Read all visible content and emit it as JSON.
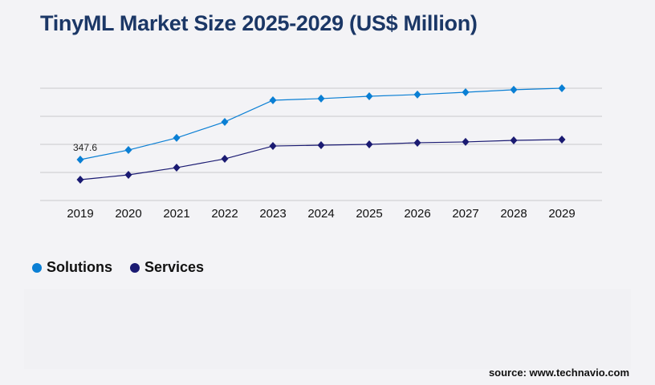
{
  "title": "TinyML Market Size 2025-2029 (US$ Million)",
  "source": "source: www.technavio.com",
  "chart_data": {
    "type": "line",
    "title": "TinyML Market Size 2025-2029 (US$ Million)",
    "categories": [
      "2019",
      "2020",
      "2021",
      "2022",
      "2023",
      "2024",
      "2025",
      "2026",
      "2027",
      "2028",
      "2029"
    ],
    "ylim": [
      0,
      954
    ],
    "grid": true,
    "legend_placement": "bottom-left",
    "series": [
      {
        "name": "Solutions",
        "color": "#0a7fd4",
        "values": [
          347.6,
          429,
          532,
          668,
          852,
          866,
          886,
          900,
          920,
          941,
          954
        ]
      },
      {
        "name": "Services",
        "color": "#1a1a72",
        "values": [
          177,
          218,
          279,
          354,
          463,
          470,
          477,
          491,
          498,
          511,
          518
        ]
      }
    ],
    "annotations": [
      {
        "series": "Solutions",
        "category": "2019",
        "label": "347.6"
      }
    ]
  }
}
